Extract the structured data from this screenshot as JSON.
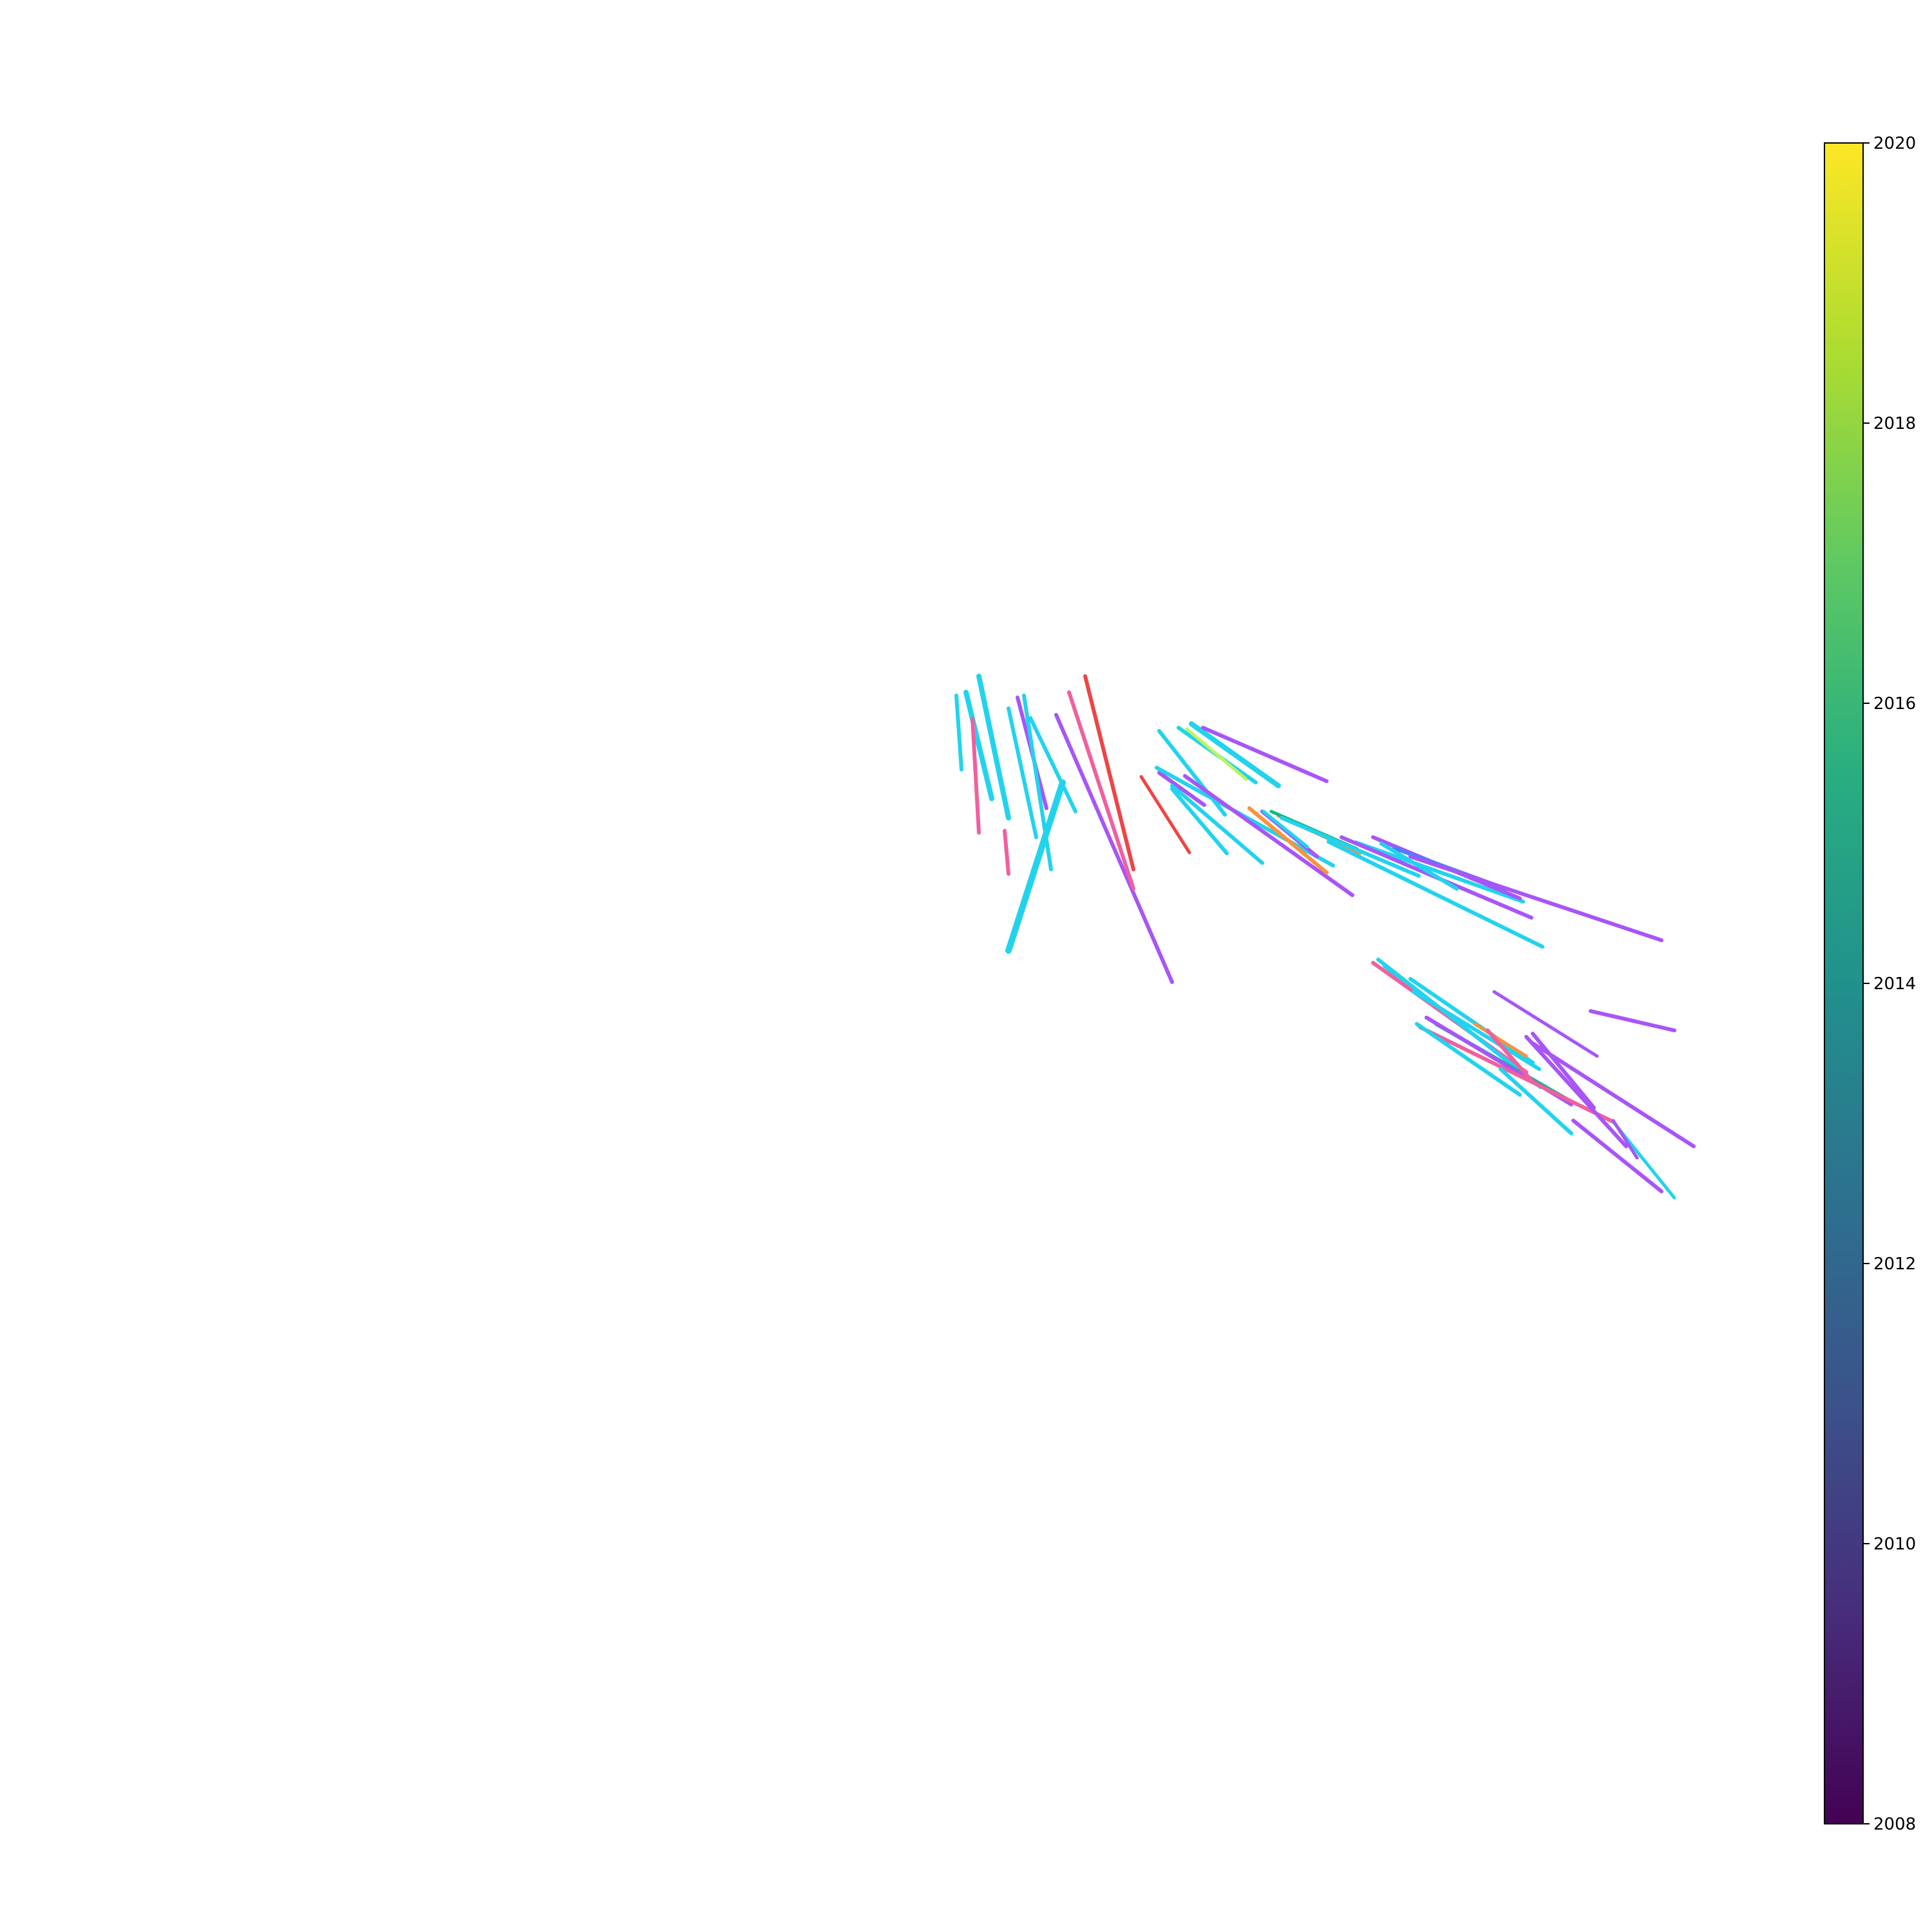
{
  "chart_data": {
    "type": "radial-segments",
    "title": "",
    "colorbar": {
      "colormap": "viridis",
      "min": 2008,
      "max": 2020,
      "ticks": [
        "2008",
        "2010",
        "2012",
        "2014",
        "2016",
        "2018",
        "2020"
      ]
    },
    "palette": {
      "cyan": "#22d3ee",
      "purple": "#a855f7",
      "pink": "#f0609e",
      "orange": "#fb923c",
      "red": "#ef4444",
      "green": "#10b981",
      "lime": "#bef264",
      "blue": "#4f7cff"
    },
    "segments": [
      {
        "sx": 1566,
        "sy": 1476,
        "ex": 1650,
        "ey": 1215,
        "color": "cyan",
        "w": 10
      },
      {
        "sx": 1520,
        "sy": 1050,
        "ex": 1566,
        "ey": 1270,
        "color": "cyan",
        "w": 8
      },
      {
        "sx": 1485,
        "sy": 1080,
        "ex": 1493,
        "ey": 1195,
        "color": "cyan",
        "w": 6
      },
      {
        "sx": 1500,
        "sy": 1075,
        "ex": 1540,
        "ey": 1240,
        "color": "cyan",
        "w": 8
      },
      {
        "sx": 1566,
        "sy": 1100,
        "ex": 1609,
        "ey": 1300,
        "color": "cyan",
        "w": 6
      },
      {
        "sx": 1580,
        "sy": 1083,
        "ex": 1625,
        "ey": 1255,
        "color": "purple",
        "w": 6
      },
      {
        "sx": 1510,
        "sy": 1116,
        "ex": 1520,
        "ey": 1293,
        "color": "pink",
        "w": 6
      },
      {
        "sx": 1560,
        "sy": 1290,
        "ex": 1566,
        "ey": 1357,
        "color": "pink",
        "w": 6
      },
      {
        "sx": 1590,
        "sy": 1080,
        "ex": 1632,
        "ey": 1350,
        "color": "cyan",
        "w": 6
      },
      {
        "sx": 1600,
        "sy": 1115,
        "ex": 1670,
        "ey": 1260,
        "color": "cyan",
        "w": 6
      },
      {
        "sx": 1640,
        "sy": 1110,
        "ex": 1820,
        "ey": 1525,
        "color": "purple",
        "w": 6
      },
      {
        "sx": 1660,
        "sy": 1075,
        "ex": 1760,
        "ey": 1380,
        "color": "pink",
        "w": 6
      },
      {
        "sx": 1685,
        "sy": 1050,
        "ex": 1760,
        "ey": 1350,
        "color": "red",
        "w": 6
      },
      {
        "sx": 1800,
        "sy": 1135,
        "ex": 1902,
        "ey": 1265,
        "color": "cyan",
        "w": 6
      },
      {
        "sx": 1830,
        "sy": 1130,
        "ex": 1950,
        "ey": 1215,
        "color": "cyan",
        "w": 6
      },
      {
        "sx": 1850,
        "sy": 1124,
        "ex": 1985,
        "ey": 1220,
        "color": "cyan",
        "w": 8
      },
      {
        "sx": 1843,
        "sy": 1132,
        "ex": 1935,
        "ey": 1210,
        "color": "lime",
        "w": 5
      },
      {
        "sx": 1772,
        "sy": 1206,
        "ex": 1847,
        "ey": 1324,
        "color": "red",
        "w": 5
      },
      {
        "sx": 1820,
        "sy": 1225,
        "ex": 1905,
        "ey": 1325,
        "color": "cyan",
        "w": 6
      },
      {
        "sx": 1868,
        "sy": 1130,
        "ex": 2060,
        "ey": 1213,
        "color": "purple",
        "w": 6
      },
      {
        "sx": 1800,
        "sy": 1200,
        "ex": 1870,
        "ey": 1250,
        "color": "purple",
        "w": 6
      },
      {
        "sx": 1796,
        "sy": 1192,
        "ex": 2070,
        "ey": 1344,
        "color": "cyan",
        "w": 6
      },
      {
        "sx": 1820,
        "sy": 1220,
        "ex": 1960,
        "ey": 1340,
        "color": "cyan",
        "w": 6
      },
      {
        "sx": 1840,
        "sy": 1205,
        "ex": 2100,
        "ey": 1390,
        "color": "purple",
        "w": 6
      },
      {
        "sx": 1940,
        "sy": 1255,
        "ex": 2060,
        "ey": 1355,
        "color": "orange",
        "w": 6
      },
      {
        "sx": 1960,
        "sy": 1260,
        "ex": 2045,
        "ey": 1330,
        "color": "purple",
        "w": 6
      },
      {
        "sx": 1962,
        "sy": 1260,
        "ex": 2030,
        "ey": 1315,
        "color": "cyan",
        "w": 5
      },
      {
        "sx": 1985,
        "sy": 1267,
        "ex": 2112,
        "ey": 1325,
        "color": "orange",
        "w": 5
      },
      {
        "sx": 1974,
        "sy": 1260,
        "ex": 2107,
        "ey": 1318,
        "color": "green",
        "w": 5
      },
      {
        "sx": 1990,
        "sy": 1270,
        "ex": 2203,
        "ey": 1360,
        "color": "cyan",
        "w": 6
      },
      {
        "sx": 2105,
        "sy": 1308,
        "ex": 2365,
        "ey": 1400,
        "color": "cyan",
        "w": 6
      },
      {
        "sx": 2063,
        "sy": 1307,
        "ex": 2395,
        "ey": 1470,
        "color": "cyan",
        "w": 6
      },
      {
        "sx": 2083,
        "sy": 1300,
        "ex": 2378,
        "ey": 1425,
        "color": "purple",
        "w": 6
      },
      {
        "sx": 2132,
        "sy": 1300,
        "ex": 2360,
        "ey": 1395,
        "color": "purple",
        "w": 6
      },
      {
        "sx": 2165,
        "sy": 1317,
        "ex": 2338,
        "ey": 1380,
        "color": "blue",
        "w": 6
      },
      {
        "sx": 2190,
        "sy": 1330,
        "ex": 2580,
        "ey": 1460,
        "color": "purple",
        "w": 6
      },
      {
        "sx": 2145,
        "sy": 1310,
        "ex": 2262,
        "ey": 1380,
        "color": "cyan",
        "w": 6
      },
      {
        "sx": 2150,
        "sy": 1500,
        "ex": 2325,
        "ey": 1635,
        "color": "cyan",
        "w": 6
      },
      {
        "sx": 2132,
        "sy": 1495,
        "ex": 2370,
        "ey": 1665,
        "color": "pink",
        "w": 6
      },
      {
        "sx": 2140,
        "sy": 1490,
        "ex": 2392,
        "ey": 1688,
        "color": "cyan",
        "w": 6
      },
      {
        "sx": 2190,
        "sy": 1520,
        "ex": 2380,
        "ey": 1650,
        "color": "cyan",
        "w": 6
      },
      {
        "sx": 2230,
        "sy": 1590,
        "ex": 2430,
        "ey": 1705,
        "color": "green",
        "w": 6
      },
      {
        "sx": 2215,
        "sy": 1580,
        "ex": 2440,
        "ey": 1715,
        "color": "purple",
        "w": 6
      },
      {
        "sx": 2290,
        "sy": 1590,
        "ex": 2370,
        "ey": 1640,
        "color": "orange",
        "w": 5
      },
      {
        "sx": 2205,
        "sy": 1595,
        "ex": 2505,
        "ey": 1742,
        "color": "pink",
        "w": 6
      },
      {
        "sx": 2200,
        "sy": 1590,
        "ex": 2360,
        "ey": 1700,
        "color": "cyan",
        "w": 6
      },
      {
        "sx": 2380,
        "sy": 1605,
        "ex": 2475,
        "ey": 1720,
        "color": "purple",
        "w": 6
      },
      {
        "sx": 2370,
        "sy": 1610,
        "ex": 2525,
        "ey": 1780,
        "color": "purple",
        "w": 6
      },
      {
        "sx": 2443,
        "sy": 1740,
        "ex": 2580,
        "ey": 1850,
        "color": "purple",
        "w": 6
      },
      {
        "sx": 2505,
        "sy": 1742,
        "ex": 2600,
        "ey": 1860,
        "color": "cyan",
        "w": 5
      },
      {
        "sx": 2505,
        "sy": 1740,
        "ex": 2542,
        "ey": 1798,
        "color": "purple",
        "w": 5
      },
      {
        "sx": 2380,
        "sy": 1620,
        "ex": 2630,
        "ey": 1780,
        "color": "purple",
        "w": 6
      },
      {
        "sx": 2195,
        "sy": 1540,
        "ex": 2390,
        "ey": 1660,
        "color": "cyan",
        "w": 6
      },
      {
        "sx": 2320,
        "sy": 1540,
        "ex": 2480,
        "ey": 1640,
        "color": "purple",
        "w": 5
      },
      {
        "sx": 2470,
        "sy": 1570,
        "ex": 2600,
        "ey": 1600,
        "color": "purple",
        "w": 6
      },
      {
        "sx": 2330,
        "sy": 1660,
        "ex": 2440,
        "ey": 1760,
        "color": "cyan",
        "w": 6
      },
      {
        "sx": 2310,
        "sy": 1600,
        "ex": 2380,
        "ey": 1680,
        "color": "pink",
        "w": 6
      }
    ]
  }
}
